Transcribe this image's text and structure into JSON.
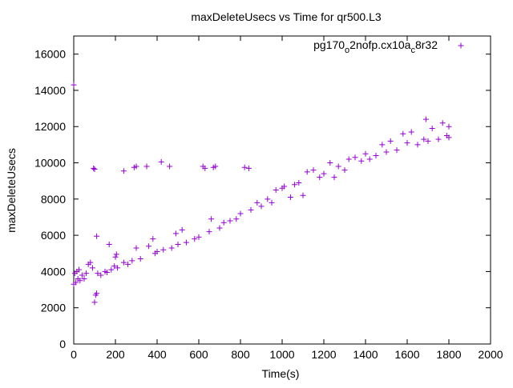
{
  "chart_data": {
    "type": "scatter",
    "title": "maxDeleteUsecs vs Time for qr500.L3",
    "xlabel": "Time(s)",
    "ylabel": "maxDeleteUsecs",
    "xlim": [
      0,
      2000
    ],
    "ylim": [
      0,
      17000
    ],
    "xticks": [
      "0",
      "200",
      "400",
      "600",
      "800",
      "1000",
      "1200",
      "1400",
      "1600",
      "1800",
      "2000"
    ],
    "yticks": [
      "0",
      "2000",
      "4000",
      "6000",
      "8000",
      "10000",
      "12000",
      "14000",
      "16000"
    ],
    "legend": {
      "placement": "top-right",
      "label_parts": [
        "pg170",
        "o",
        "2nofp.cx10a",
        "c",
        "8r32"
      ]
    },
    "grid": false,
    "marker": "+",
    "series": [
      {
        "color": "#9400d3",
        "points": [
          [
            0,
            14300
          ],
          [
            0,
            3300
          ],
          [
            5,
            3900
          ],
          [
            10,
            3400
          ],
          [
            15,
            4000
          ],
          [
            20,
            3600
          ],
          [
            25,
            4100
          ],
          [
            30,
            3500
          ],
          [
            40,
            3800
          ],
          [
            50,
            3600
          ],
          [
            60,
            3900
          ],
          [
            70,
            4400
          ],
          [
            80,
            4500
          ],
          [
            90,
            4200
          ],
          [
            95,
            9700
          ],
          [
            100,
            9650
          ],
          [
            100,
            2300
          ],
          [
            105,
            2700
          ],
          [
            110,
            2800
          ],
          [
            110,
            5950
          ],
          [
            115,
            3900
          ],
          [
            130,
            3800
          ],
          [
            150,
            4000
          ],
          [
            160,
            3950
          ],
          [
            170,
            5500
          ],
          [
            180,
            4100
          ],
          [
            195,
            4300
          ],
          [
            200,
            4800
          ],
          [
            205,
            4950
          ],
          [
            210,
            4200
          ],
          [
            240,
            9550
          ],
          [
            240,
            4500
          ],
          [
            260,
            4400
          ],
          [
            280,
            4600
          ],
          [
            290,
            9750
          ],
          [
            300,
            9800
          ],
          [
            300,
            5300
          ],
          [
            320,
            4700
          ],
          [
            350,
            9800
          ],
          [
            360,
            5400
          ],
          [
            380,
            5800
          ],
          [
            390,
            5000
          ],
          [
            400,
            5100
          ],
          [
            420,
            10050
          ],
          [
            430,
            5200
          ],
          [
            460,
            9800
          ],
          [
            470,
            5300
          ],
          [
            490,
            6100
          ],
          [
            500,
            5500
          ],
          [
            520,
            6300
          ],
          [
            540,
            5600
          ],
          [
            580,
            5800
          ],
          [
            600,
            5900
          ],
          [
            620,
            9800
          ],
          [
            630,
            9700
          ],
          [
            650,
            6200
          ],
          [
            660,
            6900
          ],
          [
            670,
            9750
          ],
          [
            680,
            9800
          ],
          [
            700,
            6400
          ],
          [
            720,
            6700
          ],
          [
            750,
            6800
          ],
          [
            780,
            6900
          ],
          [
            800,
            7200
          ],
          [
            820,
            9750
          ],
          [
            840,
            9700
          ],
          [
            850,
            7400
          ],
          [
            880,
            7800
          ],
          [
            900,
            7600
          ],
          [
            930,
            8000
          ],
          [
            950,
            7800
          ],
          [
            970,
            8500
          ],
          [
            1000,
            8600
          ],
          [
            1010,
            8700
          ],
          [
            1040,
            8100
          ],
          [
            1060,
            8800
          ],
          [
            1080,
            8900
          ],
          [
            1100,
            8200
          ],
          [
            1120,
            9500
          ],
          [
            1150,
            9600
          ],
          [
            1180,
            9200
          ],
          [
            1200,
            9400
          ],
          [
            1230,
            10000
          ],
          [
            1250,
            9200
          ],
          [
            1270,
            9800
          ],
          [
            1300,
            9600
          ],
          [
            1320,
            10200
          ],
          [
            1350,
            10300
          ],
          [
            1380,
            10100
          ],
          [
            1400,
            10500
          ],
          [
            1420,
            10200
          ],
          [
            1450,
            10400
          ],
          [
            1480,
            11000
          ],
          [
            1500,
            10600
          ],
          [
            1520,
            11200
          ],
          [
            1550,
            10700
          ],
          [
            1580,
            11600
          ],
          [
            1600,
            11100
          ],
          [
            1620,
            11700
          ],
          [
            1650,
            11000
          ],
          [
            1680,
            11300
          ],
          [
            1690,
            12400
          ],
          [
            1700,
            11200
          ],
          [
            1720,
            11900
          ],
          [
            1750,
            11300
          ],
          [
            1770,
            12200
          ],
          [
            1790,
            11500
          ],
          [
            1800,
            12000
          ],
          [
            1800,
            11400
          ]
        ]
      }
    ]
  }
}
